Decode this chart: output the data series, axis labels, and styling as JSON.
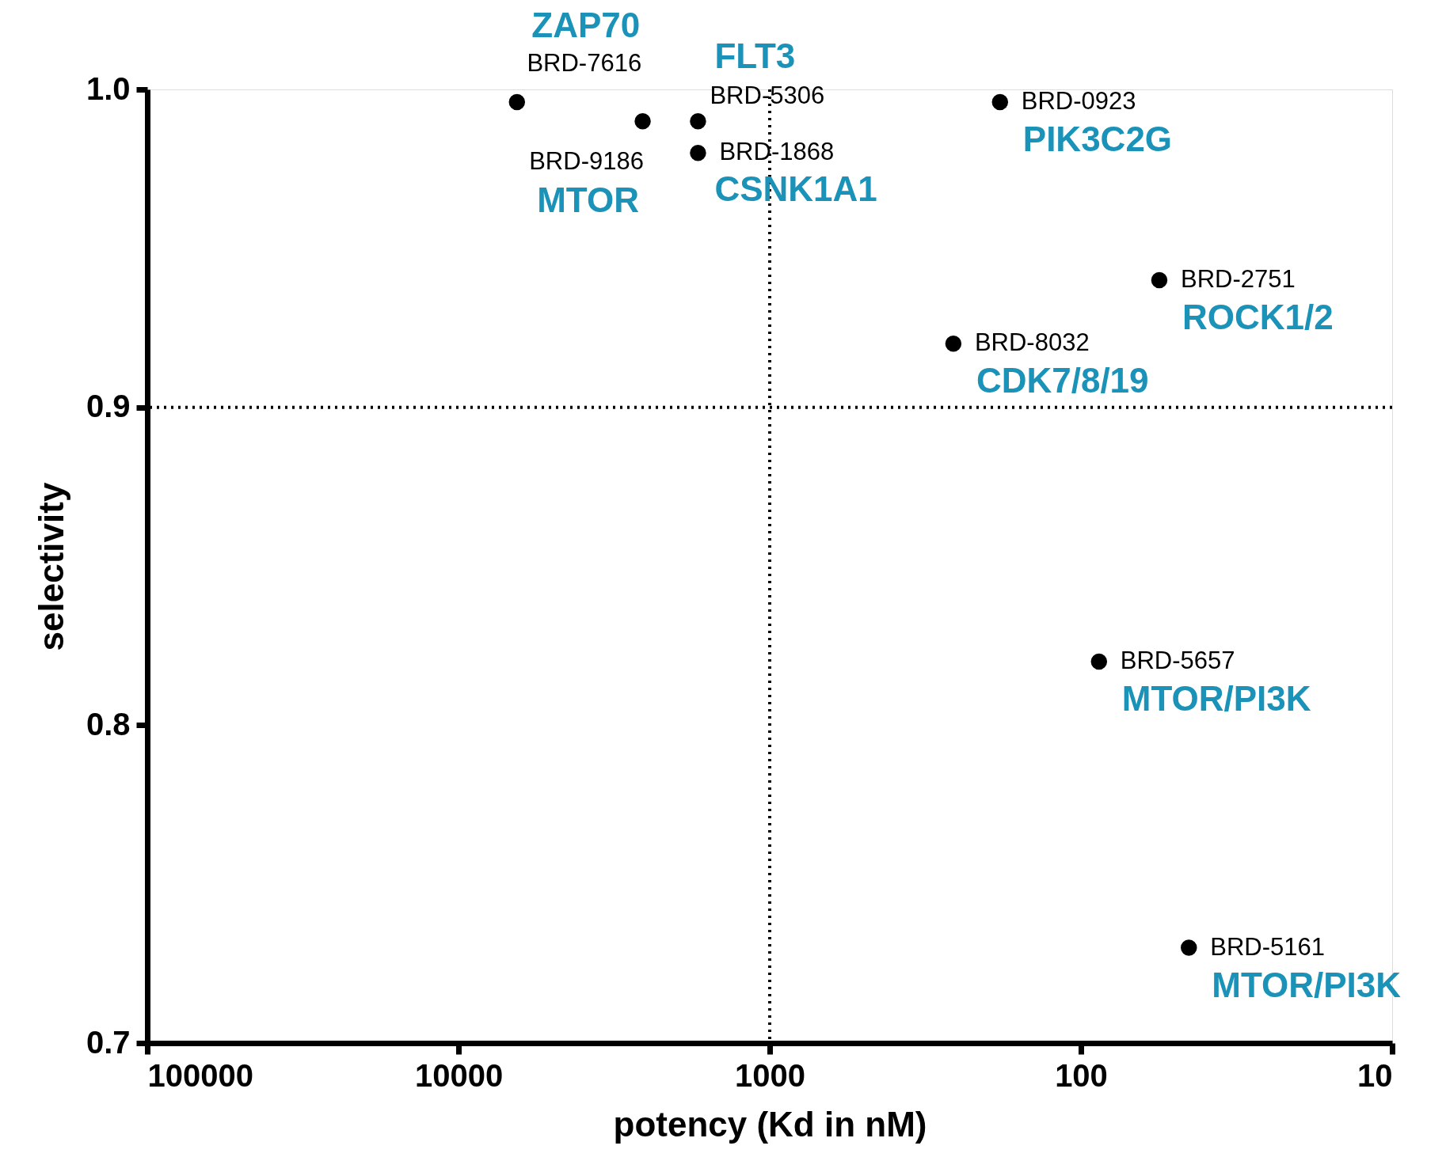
{
  "chart_data": {
    "type": "scatter",
    "xlabel": "potency (Kd in nM)",
    "ylabel": "selectivity",
    "log": "x",
    "grid": false,
    "legend": false,
    "marker": "circle",
    "xlim": [
      100000,
      10
    ],
    "xticks": [
      100000,
      10000,
      1000,
      100,
      10
    ],
    "ylim": [
      0.7,
      1.0
    ],
    "yticks": [
      0.7,
      0.8,
      0.9,
      {
        "value": 1.0,
        "label": "1.0"
      }
    ],
    "series": [
      {
        "color": "#000000",
        "x": [
          6490,
          2560,
          1700,
          1700,
          182,
          56,
          257,
          87.5,
          45
        ],
        "values": [
          0.996,
          0.99,
          0.99,
          0.98,
          0.996,
          0.94,
          0.92,
          0.82,
          0.73
        ]
      }
    ],
    "ref_lines": [
      {
        "axis": "x",
        "value": 1000,
        "line_style": "dotted",
        "color": "#000000"
      },
      {
        "axis": "y",
        "value": 0.9,
        "line_style": "dotted",
        "color": "#000000"
      }
    ],
    "annotations": [
      {
        "text": "BRD-7616",
        "x": 6490,
        "y": 0.996
      },
      {
        "text": "ZAP70",
        "x": 6490,
        "y": 0.996
      },
      {
        "text": "BRD-9186",
        "x": 2560,
        "y": 0.99
      },
      {
        "text": "MTOR",
        "x": 2560,
        "y": 0.99
      },
      {
        "text": "BRD-5306",
        "x": 1700,
        "y": 0.99
      },
      {
        "text": "FLT3",
        "x": 1700,
        "y": 0.99
      },
      {
        "text": "BRD-1868",
        "x": 1700,
        "y": 0.98
      },
      {
        "text": "CSNK1A1",
        "x": 1700,
        "y": 0.98
      },
      {
        "text": "BRD-0923",
        "x": 182,
        "y": 0.996
      },
      {
        "text": "PIK3C2G",
        "x": 182,
        "y": 0.996
      },
      {
        "text": "BRD-2751",
        "x": 56,
        "y": 0.94
      },
      {
        "text": "ROCK1/2",
        "x": 56,
        "y": 0.94
      },
      {
        "text": "BRD-8032",
        "x": 257,
        "y": 0.92
      },
      {
        "text": "CDK7/8/19",
        "x": 257,
        "y": 0.92
      },
      {
        "text": "BRD-5657",
        "x": 87.5,
        "y": 0.82
      },
      {
        "text": "MTOR/PI3K",
        "x": 87.5,
        "y": 0.82
      },
      {
        "text": "BRD-5161",
        "x": 45,
        "y": 0.73
      },
      {
        "text": "MTOR/PI3K",
        "x": 45,
        "y": 0.73
      }
    ]
  }
}
